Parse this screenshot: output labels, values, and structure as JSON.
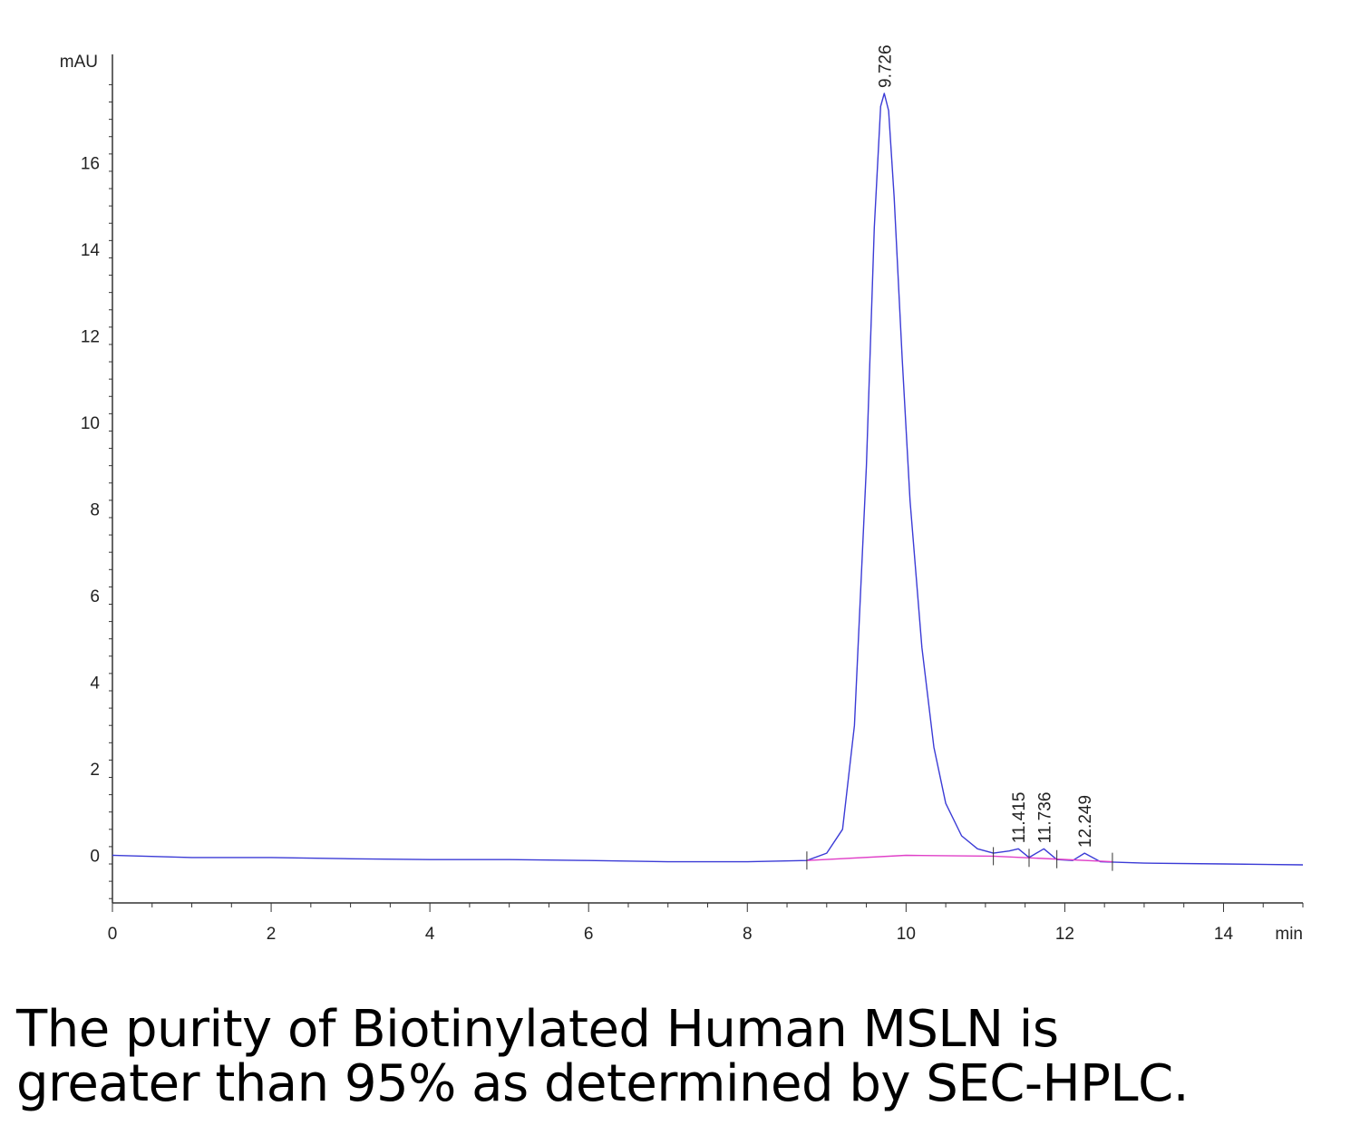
{
  "chart_data": {
    "type": "line",
    "title": "",
    "ylabel": "mAU",
    "xlabel": "min",
    "xlim": [
      0,
      15
    ],
    "ylim": [
      -1.1,
      18.5
    ],
    "x_ticks": [
      "0",
      "2",
      "4",
      "6",
      "8",
      "10",
      "12",
      "14"
    ],
    "y_ticks": [
      "0",
      "2",
      "4",
      "6",
      "8",
      "10",
      "12",
      "14",
      "16"
    ],
    "grid": false,
    "series": [
      {
        "color": "#3b3bd6",
        "points": [
          [
            0,
            0.0
          ],
          [
            1,
            -0.05
          ],
          [
            2,
            -0.05
          ],
          [
            3,
            -0.08
          ],
          [
            4,
            -0.1
          ],
          [
            5,
            -0.1
          ],
          [
            6,
            -0.12
          ],
          [
            7,
            -0.15
          ],
          [
            8,
            -0.15
          ],
          [
            8.75,
            -0.12
          ],
          [
            9.0,
            0.05
          ],
          [
            9.2,
            0.6
          ],
          [
            9.35,
            3.0
          ],
          [
            9.5,
            9.0
          ],
          [
            9.6,
            14.5
          ],
          [
            9.68,
            17.3
          ],
          [
            9.726,
            17.6
          ],
          [
            9.78,
            17.2
          ],
          [
            9.85,
            15.2
          ],
          [
            9.95,
            11.5
          ],
          [
            10.05,
            8.2
          ],
          [
            10.2,
            4.8
          ],
          [
            10.35,
            2.5
          ],
          [
            10.5,
            1.2
          ],
          [
            10.7,
            0.45
          ],
          [
            10.9,
            0.15
          ],
          [
            11.1,
            0.05
          ],
          [
            11.3,
            0.1
          ],
          [
            11.415,
            0.15
          ],
          [
            11.55,
            -0.05
          ],
          [
            11.736,
            0.15
          ],
          [
            11.9,
            -0.1
          ],
          [
            12.1,
            -0.12
          ],
          [
            12.249,
            0.05
          ],
          [
            12.45,
            -0.15
          ],
          [
            13,
            -0.18
          ],
          [
            14,
            -0.2
          ],
          [
            15,
            -0.22
          ]
        ]
      },
      {
        "color": "#e040c8",
        "points": [
          [
            8.75,
            -0.12
          ],
          [
            10.0,
            0.0
          ],
          [
            11.1,
            -0.02
          ],
          [
            12.6,
            -0.15
          ]
        ]
      }
    ],
    "peaks": [
      {
        "x": 9.726,
        "label": "9.726"
      },
      {
        "x": 11.415,
        "label": "11.415"
      },
      {
        "x": 11.736,
        "label": "11.736"
      },
      {
        "x": 12.249,
        "label": "12.249"
      }
    ],
    "integration_marks": [
      8.75,
      11.1,
      11.55,
      11.9,
      12.6
    ]
  },
  "caption": {
    "line1": "The purity of Biotinylated Human MSLN is",
    "line2": "greater than 95% as determined by SEC-HPLC."
  }
}
